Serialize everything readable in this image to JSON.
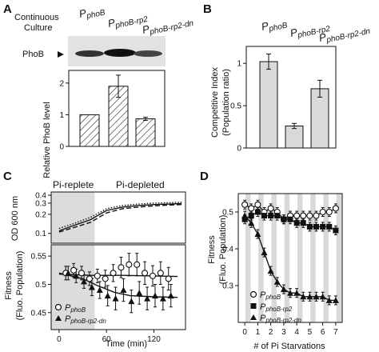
{
  "panels": {
    "A": {
      "letter": "A",
      "row_label_culture": [
        "Continuous",
        "Culture"
      ],
      "row_label_phob": "PhoB",
      "strain_main": [
        "P",
        "P",
        "P"
      ],
      "strain_sub": [
        "phoB",
        "phoB-rp2",
        "phoB-rp2-dn"
      ]
    },
    "B": {
      "letter": "B",
      "strain_main": [
        "P",
        "P",
        "P"
      ],
      "strain_sub": [
        "phoB",
        "phoB-rp2",
        "phoB-rp2-dn"
      ]
    },
    "C": {
      "letter": "C",
      "region_replete": "Pi-replete",
      "region_depleted": "Pi-depleted",
      "legend_main": [
        "P",
        "P"
      ],
      "legend_sub": [
        "phoB",
        "phoB-rp2-dn"
      ]
    },
    "D": {
      "letter": "D",
      "legend_main": [
        "P",
        "P",
        "P"
      ],
      "legend_sub": [
        "phoB",
        "phoB-rp2",
        "phoB-rp2-dn"
      ]
    }
  },
  "chart_data": [
    {
      "id": "A-bar",
      "type": "bar",
      "categories": [
        "PphoB",
        "PphoB-rp2",
        "PphoB-rp2-dn"
      ],
      "values": [
        1.0,
        1.9,
        0.87
      ],
      "errors": [
        0,
        0.35,
        0.05
      ],
      "ylabel": "Relative PhoB level",
      "ylim": [
        0,
        2.4
      ],
      "yticks": [
        0,
        1,
        2
      ],
      "fill": "hatched"
    },
    {
      "id": "B-bar",
      "type": "bar",
      "categories": [
        "PphoB",
        "PphoB-rp2",
        "PphoB-rp2-dn"
      ],
      "values": [
        1.02,
        0.26,
        0.7
      ],
      "errors": [
        0.09,
        0.03,
        0.1
      ],
      "ylabel": [
        "Competitive Index",
        "(Population ratio)"
      ],
      "ylim": [
        0,
        1.2
      ],
      "yticks": [
        0,
        0.5,
        1
      ],
      "fill": "#d9d9d9"
    },
    {
      "id": "C-od",
      "type": "line",
      "ylabel": "OD 600 nm",
      "yscale": "log",
      "ylim": [
        0.07,
        0.45
      ],
      "yticks": [
        0.1,
        0.2,
        0.3,
        0.4
      ],
      "xlim": [
        -10,
        160
      ],
      "shaded_x": [
        -10,
        45
      ],
      "series": [
        {
          "x": [
            0,
            20,
            40,
            60,
            80,
            100,
            120,
            140,
            155
          ],
          "values": [
            0.11,
            0.135,
            0.165,
            0.23,
            0.26,
            0.275,
            0.285,
            0.29,
            0.295
          ],
          "style": "solid"
        },
        {
          "x": [
            0,
            20,
            40,
            60,
            80,
            100,
            120,
            140,
            155
          ],
          "values": [
            0.12,
            0.145,
            0.18,
            0.245,
            0.275,
            0.29,
            0.3,
            0.305,
            0.31
          ],
          "style": "dotted"
        },
        {
          "x": [
            0,
            20,
            40,
            60,
            80,
            100,
            120,
            140,
            155
          ],
          "values": [
            0.105,
            0.125,
            0.15,
            0.21,
            0.245,
            0.26,
            0.272,
            0.28,
            0.285
          ],
          "style": "dashed"
        }
      ]
    },
    {
      "id": "C-fit",
      "type": "scatter",
      "xlabel": "Time (min)",
      "ylabel": [
        "Fitness",
        "(Fluo. Population)"
      ],
      "xlim": [
        -10,
        160
      ],
      "ylim": [
        0.42,
        0.57
      ],
      "xticks": [
        0,
        60,
        120
      ],
      "yticks": [
        0.45,
        0.5,
        0.55
      ],
      "shaded_x": [
        -10,
        45
      ],
      "series": [
        {
          "marker": "open-circle",
          "x": [
            10,
            20,
            30,
            40,
            50,
            60,
            70,
            80,
            90,
            100,
            110,
            120,
            130,
            140
          ],
          "values": [
            0.52,
            0.525,
            0.52,
            0.51,
            0.515,
            0.51,
            0.52,
            0.53,
            0.535,
            0.535,
            0.52,
            0.515,
            0.52,
            0.51
          ],
          "errors": [
            0.012,
            0.012,
            0.012,
            0.012,
            0.012,
            0.015,
            0.015,
            0.018,
            0.02,
            0.02,
            0.02,
            0.018,
            0.02,
            0.02
          ],
          "fit": [
            [
              0,
              0.518
            ],
            [
              40,
              0.516
            ],
            [
              80,
              0.516
            ],
            [
              120,
              0.515
            ],
            [
              150,
              0.514
            ]
          ]
        },
        {
          "marker": "filled-triangle",
          "x": [
            10,
            20,
            30,
            40,
            50,
            60,
            70,
            80,
            90,
            100,
            110,
            120,
            130,
            140
          ],
          "values": [
            0.52,
            0.515,
            0.505,
            0.495,
            0.49,
            0.48,
            0.475,
            0.49,
            0.47,
            0.485,
            0.475,
            0.48,
            0.475,
            0.48
          ],
          "errors": [
            0.012,
            0.012,
            0.012,
            0.015,
            0.015,
            0.018,
            0.02,
            0.02,
            0.02,
            0.02,
            0.02,
            0.02,
            0.02,
            0.02
          ],
          "fit": [
            [
              0,
              0.52
            ],
            [
              30,
              0.51
            ],
            [
              50,
              0.497
            ],
            [
              70,
              0.486
            ],
            [
              90,
              0.48
            ],
            [
              120,
              0.478
            ],
            [
              150,
              0.477
            ]
          ]
        }
      ]
    },
    {
      "id": "D",
      "type": "scatter",
      "xlabel": "# of Pi Starvations",
      "ylabel": [
        "Fitness",
        "(Fluo. Population)"
      ],
      "xlim": [
        -0.5,
        7.5
      ],
      "ylim": [
        0.2,
        0.55
      ],
      "xticks": [
        0,
        1,
        2,
        3,
        4,
        5,
        6,
        7
      ],
      "yticks": [
        0.3,
        0.4,
        0.5
      ],
      "stripes": "vertical grey bands at half-integer steps",
      "x": [
        0,
        0.5,
        1,
        1.5,
        2,
        2.5,
        3,
        3.5,
        4,
        4.5,
        5,
        5.5,
        6,
        6.5,
        7
      ],
      "series": [
        {
          "marker": "open-circle",
          "values": [
            0.52,
            0.51,
            0.52,
            0.5,
            0.51,
            0.5,
            0.48,
            0.49,
            0.49,
            0.49,
            0.49,
            0.49,
            0.5,
            0.5,
            0.51
          ]
        },
        {
          "marker": "filled-square",
          "values": [
            0.48,
            0.49,
            0.5,
            0.49,
            0.49,
            0.49,
            0.48,
            0.48,
            0.47,
            0.47,
            0.46,
            0.46,
            0.46,
            0.46,
            0.45
          ]
        },
        {
          "marker": "filled-triangle",
          "values": [
            0.49,
            0.47,
            0.44,
            0.39,
            0.34,
            0.31,
            0.29,
            0.28,
            0.28,
            0.27,
            0.27,
            0.27,
            0.27,
            0.26,
            0.26
          ]
        }
      ]
    }
  ]
}
